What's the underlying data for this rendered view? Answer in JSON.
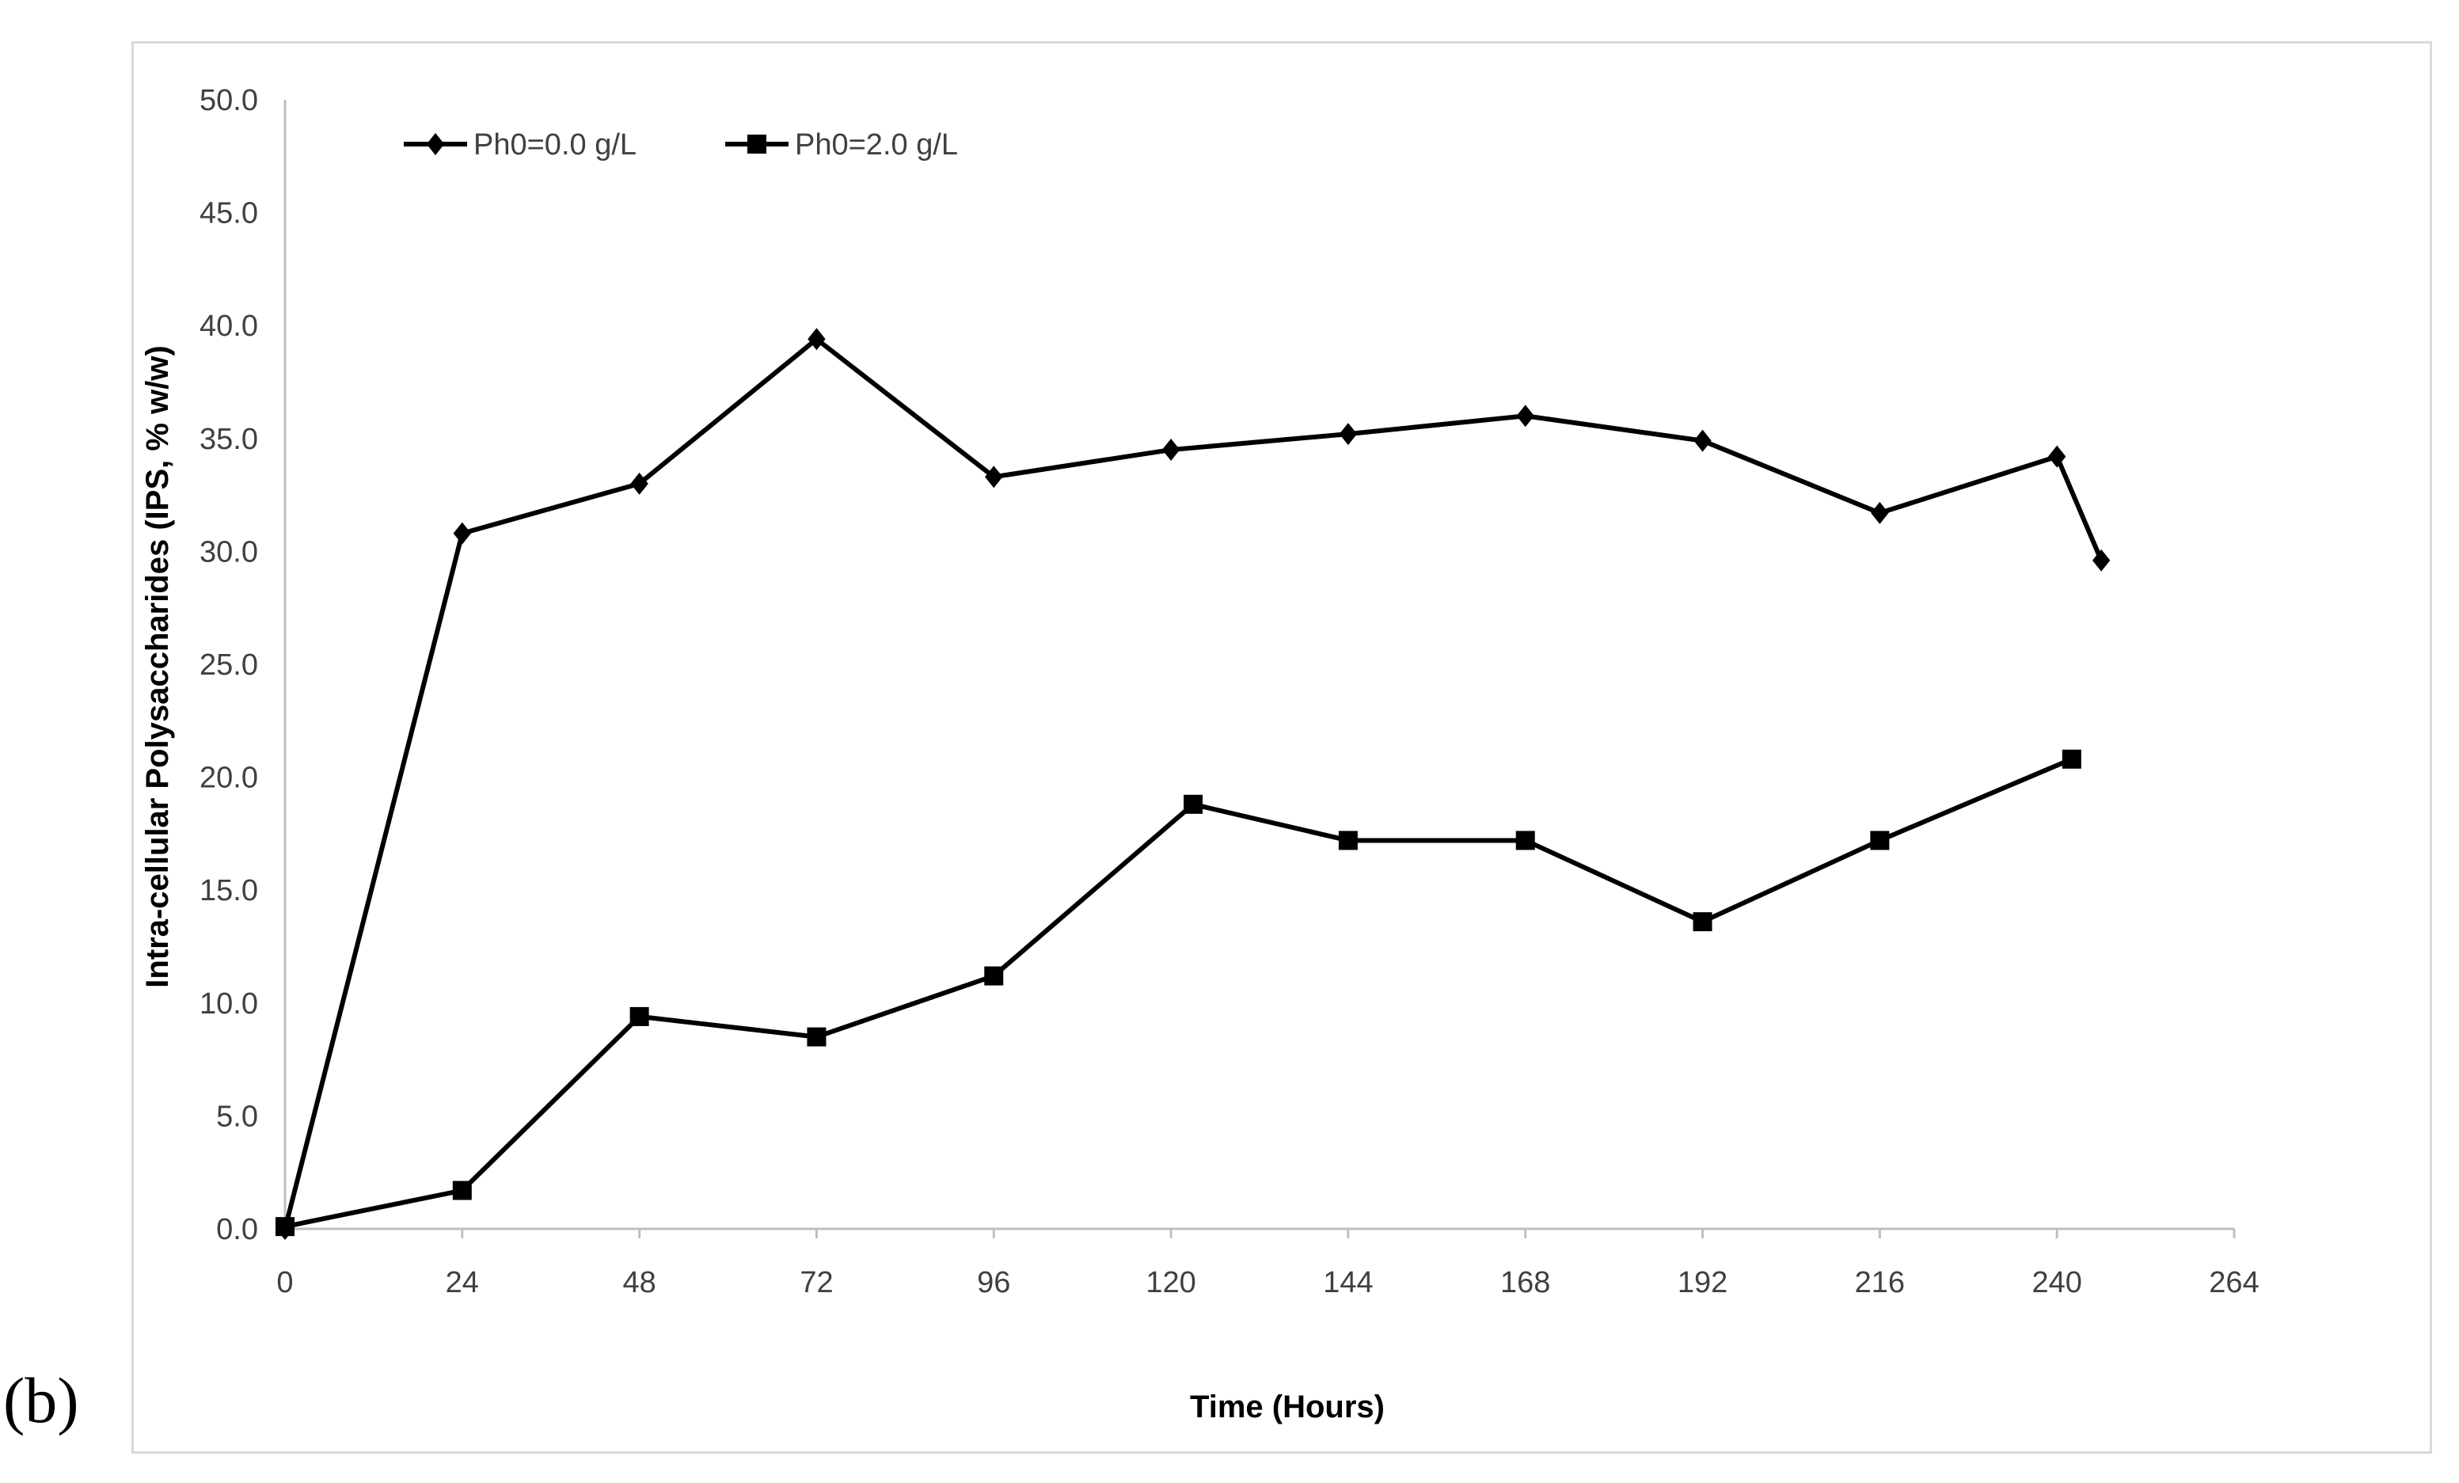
{
  "panel_label": "(b)",
  "chart_data": {
    "type": "line",
    "title": "",
    "xlabel": "Time (Hours)",
    "ylabel": "Intra-cellular Polysaccharides (IPS, % w/w)",
    "xlim": [
      0,
      264
    ],
    "ylim": [
      0,
      50
    ],
    "x_ticks": [
      "0",
      "24",
      "48",
      "72",
      "96",
      "120",
      "144",
      "168",
      "192",
      "216",
      "240",
      "264"
    ],
    "y_ticks": [
      "0.0",
      "5.0",
      "10.0",
      "15.0",
      "20.0",
      "25.0",
      "30.0",
      "35.0",
      "40.0",
      "45.0",
      "50.0"
    ],
    "grid": false,
    "legend_position": "top-left",
    "series": [
      {
        "name": "Ph0=0.0 g/L",
        "marker": "diamond",
        "color": "#000000",
        "points": [
          {
            "x": 0,
            "y": 0.0
          },
          {
            "x": 24,
            "y": 30.8
          },
          {
            "x": 48,
            "y": 33.0
          },
          {
            "x": 72,
            "y": 39.4
          },
          {
            "x": 96,
            "y": 33.3
          },
          {
            "x": 120,
            "y": 34.5
          },
          {
            "x": 144,
            "y": 35.2
          },
          {
            "x": 168,
            "y": 36.0
          },
          {
            "x": 192,
            "y": 34.9
          },
          {
            "x": 216,
            "y": 31.7
          },
          {
            "x": 240,
            "y": 34.2
          },
          {
            "x": 246,
            "y": 29.6
          }
        ]
      },
      {
        "name": "Ph0=2.0 g/L",
        "marker": "square",
        "color": "#000000",
        "points": [
          {
            "x": 0,
            "y": 0.1
          },
          {
            "x": 24,
            "y": 1.7
          },
          {
            "x": 48,
            "y": 9.4
          },
          {
            "x": 72,
            "y": 8.5
          },
          {
            "x": 96,
            "y": 11.2
          },
          {
            "x": 123,
            "y": 18.8
          },
          {
            "x": 144,
            "y": 17.2
          },
          {
            "x": 168,
            "y": 17.2
          },
          {
            "x": 192,
            "y": 13.6
          },
          {
            "x": 216,
            "y": 17.2
          },
          {
            "x": 242,
            "y": 20.8
          }
        ]
      }
    ]
  }
}
